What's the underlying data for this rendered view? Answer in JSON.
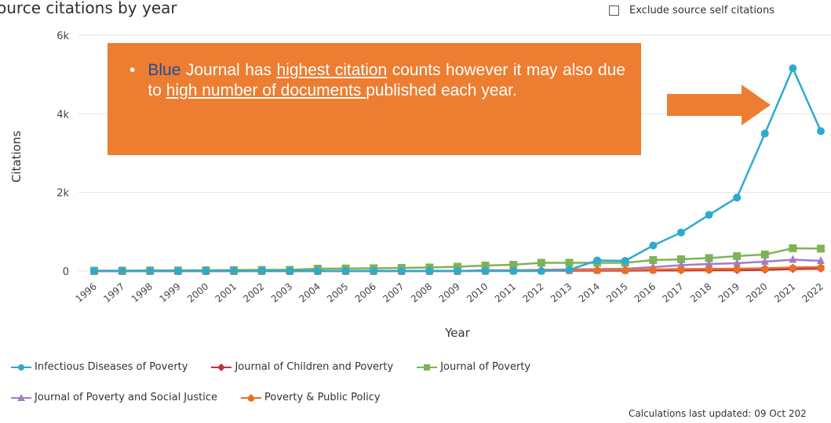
{
  "header": {
    "title": "ource citations by year",
    "exclude_label": "Exclude source self citations"
  },
  "chart_data": {
    "type": "line",
    "title": "ource citations by year",
    "xlabel": "Year",
    "ylabel": "Citations",
    "ylim": [
      0,
      6000
    ],
    "yticks": [
      "0",
      "2k",
      "4k",
      "6k"
    ],
    "ytick_values": [
      0,
      2000,
      4000,
      6000
    ],
    "grid": true,
    "legend_position": "bottom",
    "categories": [
      "1996",
      "1997",
      "1998",
      "1999",
      "2000",
      "2001",
      "2002",
      "2003",
      "2004",
      "2005",
      "2006",
      "2007",
      "2008",
      "2009",
      "2010",
      "2011",
      "2012",
      "2013",
      "2014",
      "2015",
      "2016",
      "2017",
      "2018",
      "2019",
      "2020",
      "2021",
      "2022"
    ],
    "series": [
      {
        "name": "Infectious Diseases of Poverty",
        "color": "#2EAAD0",
        "marker": "circle",
        "values": [
          0,
          0,
          0,
          0,
          0,
          0,
          0,
          0,
          0,
          0,
          0,
          0,
          0,
          0,
          0,
          0,
          0,
          30,
          270,
          260,
          650,
          980,
          1430,
          1870,
          3500,
          5160,
          3560
        ]
      },
      {
        "name": "Journal of Children and Poverty",
        "color": "#C0343F",
        "marker": "diamond",
        "values": [
          0,
          0,
          0,
          0,
          0,
          0,
          5,
          5,
          5,
          5,
          5,
          5,
          5,
          5,
          5,
          5,
          10,
          10,
          10,
          10,
          15,
          15,
          20,
          20,
          30,
          50,
          60
        ]
      },
      {
        "name": "Journal of Poverty",
        "color": "#7DB356",
        "marker": "square",
        "values": [
          10,
          10,
          15,
          15,
          20,
          25,
          30,
          30,
          60,
          65,
          70,
          80,
          90,
          110,
          140,
          160,
          210,
          210,
          210,
          210,
          280,
          300,
          330,
          380,
          420,
          580,
          570
        ]
      },
      {
        "name": "Journal of Poverty and Social Justice",
        "color": "#A37CC6",
        "marker": "triangle",
        "values": [
          0,
          0,
          0,
          0,
          0,
          0,
          0,
          0,
          0,
          0,
          0,
          0,
          0,
          0,
          20,
          20,
          30,
          40,
          50,
          60,
          100,
          150,
          180,
          200,
          240,
          290,
          260
        ]
      },
      {
        "name": "Poverty & Public Policy",
        "color": "#E96F26",
        "marker": "star",
        "values": [
          0,
          0,
          0,
          0,
          0,
          0,
          0,
          0,
          0,
          0,
          0,
          0,
          0,
          0,
          5,
          10,
          20,
          25,
          30,
          30,
          40,
          50,
          55,
          60,
          70,
          90,
          100
        ]
      }
    ]
  },
  "callout": {
    "bullet": "•",
    "w1": "Blue",
    "t1": " Journal has ",
    "u1": "highest citation",
    "t2": " counts however it may also due to ",
    "u2": "high number of documents ",
    "t3": "published each year."
  },
  "footer": {
    "updated": "Calculations last updated: 09 Oct 202"
  }
}
